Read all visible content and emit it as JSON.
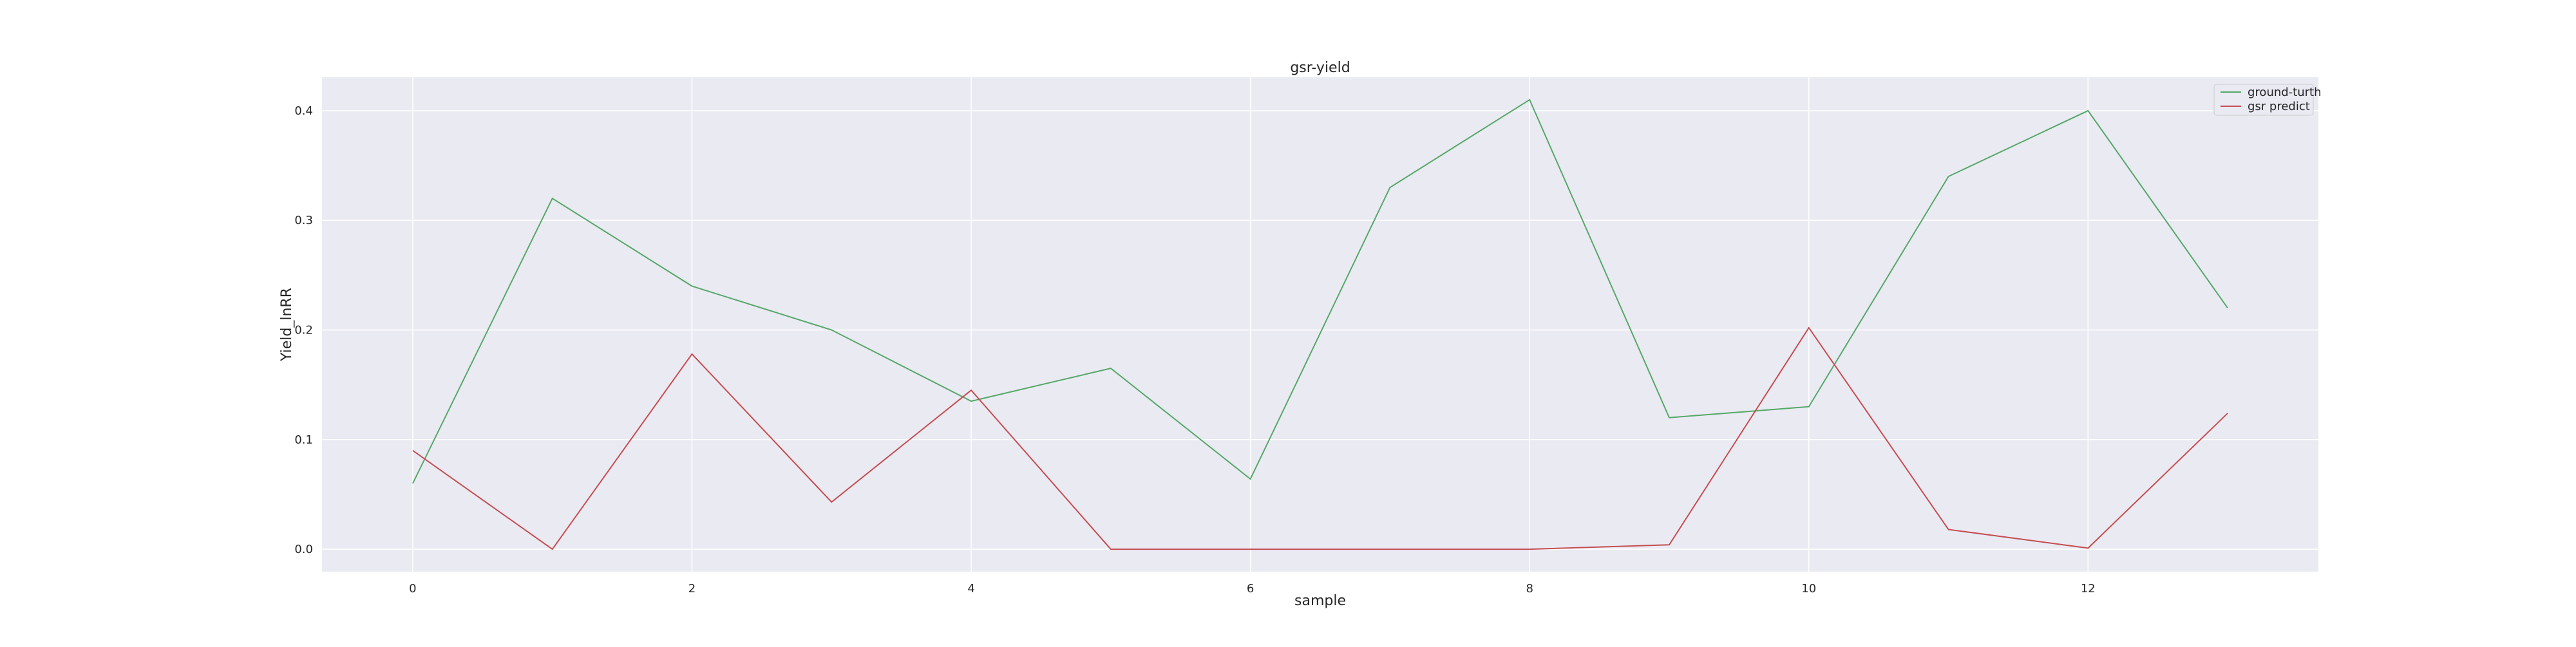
{
  "chart_data": {
    "type": "line",
    "title": "gsr-yield",
    "xlabel": "sample",
    "ylabel": "Yield_lnRR",
    "x": [
      0,
      1,
      2,
      3,
      4,
      5,
      6,
      7,
      8,
      9,
      10,
      11,
      12,
      13
    ],
    "xticks": [
      0,
      2,
      4,
      6,
      8,
      10,
      12
    ],
    "xtick_labels": [
      "0",
      "2",
      "4",
      "6",
      "8",
      "10",
      "12"
    ],
    "yticks": [
      0.0,
      0.1,
      0.2,
      0.3,
      0.4
    ],
    "ytick_labels": [
      "0.0",
      "0.1",
      "0.2",
      "0.3",
      "0.4"
    ],
    "xlim": [
      -0.65,
      13.65
    ],
    "ylim": [
      -0.0205,
      0.4305
    ],
    "grid": true,
    "legend_position": "top-right",
    "background_color": "#eaeaf2",
    "grid_color": "#ffffff",
    "series": [
      {
        "name": "ground-turth",
        "color": "#55a868",
        "values": [
          0.06,
          0.32,
          0.24,
          0.2,
          0.135,
          0.165,
          0.064,
          0.33,
          0.41,
          0.12,
          0.13,
          0.34,
          0.4,
          0.22
        ]
      },
      {
        "name": "gsr predict",
        "color": "#c44e52",
        "values": [
          0.09,
          0.0,
          0.178,
          0.043,
          0.145,
          0.0,
          0.0,
          0.0,
          0.0,
          0.004,
          0.202,
          0.018,
          0.001,
          0.124
        ]
      }
    ]
  }
}
